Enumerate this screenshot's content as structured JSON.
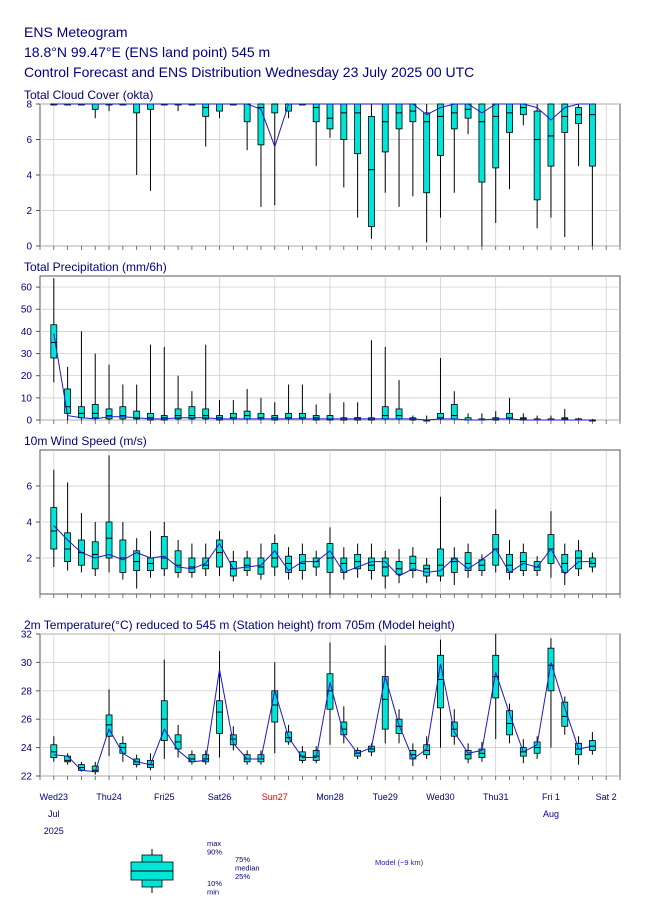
{
  "header": {
    "line1": "ENS Meteogram",
    "line2": "18.8°N 99.47°E (ENS land point) 545 m",
    "line3": "Control Forecast and ENS Distribution Wednesday 23 July 2025 00 UTC"
  },
  "colors": {
    "box": "#00e5d8",
    "model": "#1a1acc",
    "whisker": "#000000",
    "grid": "#c8c8c8",
    "text": "#00007f",
    "sunday": "#e00000"
  },
  "x_axis": {
    "days": [
      {
        "label": "Wed23",
        "color": "#00007f"
      },
      {
        "label": "Thu24",
        "color": "#00007f"
      },
      {
        "label": "Fri25",
        "color": "#00007f"
      },
      {
        "label": "Sat26",
        "color": "#00007f"
      },
      {
        "label": "Sun27",
        "color": "#e00000"
      },
      {
        "label": "Mon28",
        "color": "#00007f"
      },
      {
        "label": "Tue29",
        "color": "#00007f"
      },
      {
        "label": "Wed30",
        "color": "#00007f"
      },
      {
        "label": "Thu31",
        "color": "#00007f"
      },
      {
        "label": "Fri 1",
        "color": "#00007f"
      },
      {
        "label": "Sat 2",
        "color": "#00007f"
      }
    ],
    "month1": "Jul",
    "year": "2025",
    "month2": "Aug"
  },
  "legend": {
    "max90": "max\n90%",
    "q": "75%\nmedian\n25%",
    "min10": "10%\nmin",
    "model": "Model (~9 km)"
  },
  "chart_data": [
    {
      "type": "boxplot",
      "title": "Total Cloud Cover (okta)",
      "ylim": [
        0,
        8
      ],
      "yticks": [
        0,
        2,
        4,
        6,
        8
      ],
      "boxes": [
        [
          8,
          8,
          8,
          8,
          8
        ],
        [
          8,
          8,
          8,
          8,
          8
        ],
        [
          8,
          8,
          8,
          8,
          8
        ],
        [
          7.2,
          7.7,
          8,
          8,
          8
        ],
        [
          7.6,
          8,
          8,
          8,
          8
        ],
        [
          8,
          8,
          8,
          8,
          8
        ],
        [
          4.0,
          7.5,
          8,
          8,
          8
        ],
        [
          3.1,
          7.7,
          8,
          8,
          8
        ],
        [
          8,
          8,
          8,
          8,
          8
        ],
        [
          7.6,
          8,
          8,
          8,
          8
        ],
        [
          8,
          8,
          8,
          8,
          8
        ],
        [
          5.6,
          7.3,
          7.8,
          8,
          8
        ],
        [
          7.2,
          7.6,
          8,
          8,
          8
        ],
        [
          8,
          8,
          8,
          8,
          8
        ],
        [
          5.4,
          7.0,
          8,
          8,
          8
        ],
        [
          2.2,
          5.7,
          7.8,
          8,
          8
        ],
        [
          2.3,
          7.5,
          8,
          8,
          8
        ],
        [
          7.2,
          7.6,
          8,
          8,
          8
        ],
        [
          8,
          8,
          8,
          8,
          8
        ],
        [
          4.5,
          7.0,
          7.8,
          8,
          8
        ],
        [
          6.1,
          6.6,
          7.2,
          8,
          8
        ],
        [
          3.3,
          6.0,
          7.5,
          8,
          8
        ],
        [
          1.6,
          5.2,
          7.5,
          8,
          8
        ],
        [
          0.4,
          1.1,
          4.3,
          7.3,
          8
        ],
        [
          3.0,
          5.3,
          7.0,
          8,
          8
        ],
        [
          2.2,
          6.6,
          7.5,
          8,
          8
        ],
        [
          2.8,
          7.0,
          7.6,
          8,
          8
        ],
        [
          0.2,
          3.0,
          7.0,
          7.5,
          8
        ],
        [
          1.6,
          5.1,
          7.3,
          8,
          8
        ],
        [
          3.0,
          6.6,
          7.5,
          8,
          8
        ],
        [
          6.3,
          7.2,
          7.7,
          8,
          8
        ],
        [
          0.0,
          3.6,
          7.0,
          8,
          8
        ],
        [
          1.3,
          4.4,
          7.3,
          8,
          8
        ],
        [
          3.2,
          6.4,
          7.5,
          8,
          8
        ],
        [
          6.8,
          7.4,
          7.8,
          8,
          8
        ],
        [
          1.0,
          2.6,
          6.0,
          7.6,
          8
        ],
        [
          1.6,
          4.5,
          6.2,
          8,
          8
        ],
        [
          0.5,
          6.4,
          7.3,
          8,
          8
        ],
        [
          4.5,
          6.9,
          7.4,
          7.8,
          8
        ],
        [
          0.0,
          4.5,
          7.4,
          8,
          8
        ]
      ],
      "model": [
        8,
        8,
        8,
        8,
        8,
        8,
        8,
        8,
        8,
        8,
        8,
        8,
        8,
        8,
        8,
        7.7,
        5.6,
        8,
        8,
        8,
        8,
        8,
        8,
        8,
        8,
        8,
        8,
        7.4,
        7.8,
        8,
        8,
        7.5,
        8,
        8,
        8,
        7.8,
        7.1,
        7.8,
        8,
        8
      ]
    },
    {
      "type": "boxplot",
      "title": "Total Precipitation (mm/6h)",
      "ylim": [
        0,
        65
      ],
      "yticks": [
        0,
        10,
        20,
        30,
        40,
        50,
        60
      ],
      "boxes": [
        [
          17,
          28,
          35,
          43,
          64
        ],
        [
          0,
          3,
          6,
          14,
          24
        ],
        [
          0,
          1,
          3,
          6,
          40
        ],
        [
          0,
          1,
          3,
          7,
          30
        ],
        [
          0,
          0.5,
          2,
          5,
          25
        ],
        [
          0,
          0.5,
          2,
          6,
          16
        ],
        [
          0,
          0.5,
          1,
          4,
          16
        ],
        [
          0,
          0,
          1,
          3,
          34
        ],
        [
          0,
          0,
          1,
          2,
          33
        ],
        [
          0,
          0.5,
          2,
          5,
          20
        ],
        [
          0,
          0.5,
          2,
          6,
          13
        ],
        [
          0,
          0.5,
          2,
          5,
          34
        ],
        [
          0,
          0,
          1,
          2,
          9
        ],
        [
          0,
          0.5,
          1,
          3,
          9
        ],
        [
          0,
          0.5,
          2,
          4,
          14
        ],
        [
          0,
          0.5,
          1,
          3,
          10
        ],
        [
          0,
          0,
          1,
          2,
          8
        ],
        [
          0,
          0.5,
          1,
          3,
          16
        ],
        [
          0,
          0.5,
          1,
          3,
          16
        ],
        [
          0,
          0,
          1,
          2,
          7
        ],
        [
          0,
          0,
          0.5,
          2,
          12
        ],
        [
          0,
          0,
          0.5,
          1,
          8
        ],
        [
          0,
          0,
          1,
          1,
          8
        ],
        [
          0,
          0,
          0.5,
          1,
          36
        ],
        [
          0,
          0.5,
          2,
          6,
          33
        ],
        [
          0,
          0.5,
          2,
          5,
          18
        ],
        [
          0,
          0,
          0.5,
          1,
          2
        ],
        [
          0,
          0,
          0,
          0,
          2
        ],
        [
          0,
          0.5,
          1,
          3,
          28
        ],
        [
          0,
          0.5,
          2,
          7,
          13
        ],
        [
          0,
          0,
          0,
          1,
          3
        ],
        [
          0,
          0,
          0,
          0.5,
          3
        ],
        [
          0,
          0,
          0.5,
          1,
          4
        ],
        [
          0,
          0.5,
          1,
          3,
          10
        ],
        [
          0,
          0,
          0.5,
          1,
          3
        ],
        [
          0,
          0,
          0,
          0.5,
          2
        ],
        [
          0,
          0,
          0,
          0.5,
          2
        ],
        [
          0,
          0,
          0.5,
          1,
          5
        ],
        [
          0,
          0,
          0,
          0.5,
          1
        ],
        [
          0,
          0,
          0,
          0,
          0.5
        ]
      ],
      "model": [
        39,
        2,
        1,
        0.5,
        1.5,
        1.5,
        1,
        0.5,
        0.5,
        1,
        1,
        1,
        0.5,
        0.5,
        0.5,
        0.5,
        0.5,
        0.5,
        0.5,
        0.5,
        0.5,
        0.5,
        0.5,
        0.5,
        0.5,
        0.5,
        0.5,
        0,
        0.5,
        0.5,
        0,
        0,
        0.5,
        0.5,
        0,
        0,
        0,
        0,
        0,
        0
      ]
    },
    {
      "type": "boxplot",
      "title": "10m Wind Speed (m/s)",
      "ylim": [
        0,
        8
      ],
      "yticks": [
        2,
        4,
        6
      ],
      "boxes": [
        [
          1.5,
          2.5,
          3.5,
          4.8,
          6.9
        ],
        [
          1.3,
          1.8,
          2.5,
          3.4,
          6.2
        ],
        [
          1.2,
          1.6,
          2.3,
          3.0,
          4.5
        ],
        [
          1.0,
          1.4,
          2.2,
          2.9,
          4.0
        ],
        [
          1.2,
          2.0,
          3.1,
          4.0,
          7.7
        ],
        [
          0.8,
          1.2,
          2.0,
          3.0,
          4.0
        ],
        [
          0.3,
          1.3,
          1.8,
          2.4,
          3.1
        ],
        [
          0.9,
          1.3,
          1.7,
          2.0,
          3.5
        ],
        [
          1.0,
          1.4,
          2.0,
          3.2,
          4.0
        ],
        [
          0.9,
          1.2,
          1.6,
          2.4,
          3.0
        ],
        [
          0.9,
          1.2,
          1.5,
          2.0,
          2.8
        ],
        [
          1.0,
          1.4,
          1.6,
          2.0,
          2.8
        ],
        [
          1.0,
          1.5,
          2.3,
          3.0,
          3.5
        ],
        [
          0.7,
          1.0,
          1.4,
          1.8,
          2.4
        ],
        [
          1.0,
          1.3,
          1.6,
          2.0,
          2.4
        ],
        [
          0.8,
          1.1,
          1.5,
          2.0,
          2.8
        ],
        [
          1.0,
          1.5,
          2.0,
          2.8,
          3.3
        ],
        [
          0.8,
          1.2,
          1.7,
          2.1,
          2.6
        ],
        [
          0.8,
          1.3,
          1.7,
          2.2,
          2.8
        ],
        [
          1.0,
          1.5,
          1.8,
          2.0,
          2.4
        ],
        [
          0.0,
          1.2,
          2.0,
          2.8,
          3.7
        ],
        [
          0.8,
          1.2,
          1.7,
          2.0,
          2.6
        ],
        [
          0.9,
          1.4,
          1.8,
          2.2,
          2.8
        ],
        [
          0.8,
          1.3,
          1.6,
          2.0,
          2.8
        ],
        [
          0.3,
          1.0,
          1.5,
          2.0,
          2.4
        ],
        [
          0.6,
          1.1,
          1.4,
          1.8,
          2.5
        ],
        [
          0.9,
          1.3,
          1.7,
          2.1,
          2.6
        ],
        [
          0.6,
          1.0,
          1.4,
          1.6,
          2.0
        ],
        [
          0.7,
          1.0,
          1.6,
          2.5,
          5.4
        ],
        [
          0.5,
          1.2,
          1.8,
          2.0,
          2.6
        ],
        [
          0.9,
          1.3,
          1.7,
          2.3,
          2.8
        ],
        [
          1.0,
          1.3,
          1.6,
          1.9,
          2.2
        ],
        [
          1.2,
          1.6,
          2.5,
          3.3,
          4.7
        ],
        [
          0.8,
          1.2,
          1.6,
          2.2,
          3.0
        ],
        [
          1.0,
          1.3,
          1.8,
          2.3,
          2.8
        ],
        [
          1.0,
          1.3,
          1.5,
          1.8,
          2.1
        ],
        [
          0.9,
          1.7,
          2.5,
          3.3,
          4.6
        ],
        [
          0.5,
          1.2,
          1.7,
          2.2,
          2.8
        ],
        [
          1.0,
          1.4,
          2.0,
          2.4,
          3.0
        ],
        [
          1.2,
          1.5,
          1.7,
          2.0,
          2.3
        ]
      ],
      "model": [
        3.8,
        3.0,
        2.3,
        2.0,
        2.2,
        1.9,
        2.3,
        2.0,
        2.1,
        1.5,
        1.4,
        1.7,
        2.8,
        1.4,
        1.5,
        1.6,
        2.4,
        1.3,
        1.8,
        1.8,
        2.4,
        1.2,
        1.5,
        1.8,
        1.8,
        1.0,
        1.4,
        1.2,
        1.3,
        2.0,
        1.4,
        1.9,
        2.5,
        1.2,
        1.7,
        1.5,
        2.5,
        1.1,
        1.8,
        1.8
      ]
    },
    {
      "type": "boxplot",
      "title": "2m Temperature(°C) reduced to 545 m (Station height) from 705m (Model height)",
      "ylim": [
        22,
        32
      ],
      "yticks": [
        22,
        24,
        26,
        28,
        30,
        32
      ],
      "boxes": [
        [
          23.0,
          23.3,
          23.7,
          24.2,
          24.8
        ],
        [
          22.8,
          23.0,
          23.1,
          23.4,
          23.6
        ],
        [
          22.3,
          22.4,
          22.6,
          22.8,
          23.0
        ],
        [
          22.1,
          22.3,
          22.4,
          22.7,
          23.0
        ],
        [
          23.4,
          24.8,
          25.6,
          26.3,
          28.1
        ],
        [
          23.0,
          23.6,
          24.0,
          24.3,
          24.8
        ],
        [
          22.6,
          22.8,
          23.0,
          23.2,
          23.5
        ],
        [
          22.4,
          22.6,
          22.8,
          23.1,
          23.6
        ],
        [
          23.2,
          24.5,
          26.0,
          27.3,
          30.2
        ],
        [
          23.3,
          23.9,
          24.4,
          24.9,
          25.6
        ],
        [
          22.8,
          23.0,
          23.2,
          23.5,
          23.8
        ],
        [
          22.8,
          23.0,
          23.2,
          23.5,
          23.8
        ],
        [
          23.3,
          25.0,
          26.5,
          27.3,
          30.8
        ],
        [
          23.8,
          24.2,
          24.6,
          24.9,
          25.5
        ],
        [
          22.8,
          23.0,
          23.2,
          23.5,
          23.8
        ],
        [
          22.8,
          23.0,
          23.2,
          23.5,
          23.8
        ],
        [
          23.6,
          25.8,
          27.0,
          28.0,
          30.0
        ],
        [
          24.2,
          24.4,
          24.7,
          25.1,
          25.6
        ],
        [
          22.9,
          23.1,
          23.4,
          23.7,
          24.1
        ],
        [
          22.9,
          23.1,
          23.4,
          23.8,
          24.1
        ],
        [
          24.2,
          26.7,
          28.0,
          29.2,
          31.4
        ],
        [
          24.3,
          24.9,
          25.3,
          25.8,
          26.9
        ],
        [
          23.2,
          23.4,
          23.6,
          23.8,
          24.0
        ],
        [
          23.4,
          23.7,
          23.9,
          24.1,
          24.3
        ],
        [
          24.3,
          25.3,
          27.4,
          29.0,
          31.2
        ],
        [
          24.3,
          25.0,
          25.5,
          26.0,
          26.7
        ],
        [
          22.7,
          23.2,
          23.5,
          23.8,
          24.3
        ],
        [
          23.2,
          23.5,
          23.8,
          24.2,
          24.8
        ],
        [
          24.0,
          26.8,
          28.8,
          30.5,
          31.6
        ],
        [
          24.2,
          24.8,
          25.3,
          25.8,
          26.7
        ],
        [
          22.9,
          23.2,
          23.5,
          23.8,
          24.3
        ],
        [
          23.0,
          23.3,
          23.6,
          23.9,
          24.4
        ],
        [
          24.6,
          27.5,
          29.0,
          30.5,
          32.0
        ],
        [
          24.3,
          24.9,
          25.7,
          26.6,
          27.1
        ],
        [
          22.9,
          23.4,
          23.7,
          24.0,
          24.6
        ],
        [
          23.2,
          23.6,
          24.0,
          24.4,
          24.8
        ],
        [
          24.0,
          28.0,
          29.8,
          31.0,
          31.7
        ],
        [
          24.9,
          25.5,
          26.2,
          27.2,
          27.6
        ],
        [
          22.8,
          23.5,
          23.9,
          24.3,
          24.8
        ],
        [
          23.5,
          23.8,
          24.1,
          24.5,
          25.1
        ]
      ],
      "model": [
        23.5,
        23.4,
        22.4,
        22.3,
        25.3,
        23.6,
        23.0,
        22.8,
        25.3,
        23.8,
        23.0,
        23.1,
        29.5,
        24.3,
        23.2,
        23.2,
        28.0,
        24.7,
        23.3,
        23.3,
        28.6,
        24.9,
        23.6,
        24.0,
        29.0,
        25.6,
        23.2,
        23.9,
        29.9,
        25.1,
        23.6,
        23.8,
        29.3,
        26.4,
        23.7,
        24.2,
        30.0,
        26.8,
        23.9,
        24.1
      ]
    }
  ]
}
